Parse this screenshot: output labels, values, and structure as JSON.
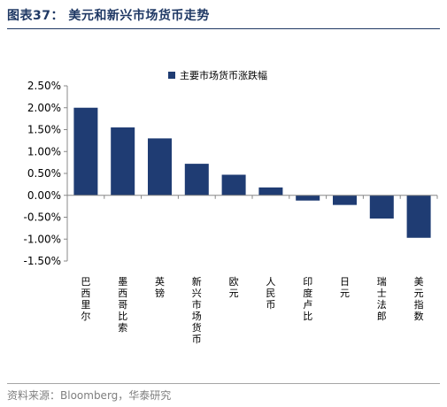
{
  "header": {
    "title": "图表37：  美元和新兴市场货币走势"
  },
  "footer": {
    "source": "资料来源：Bloomberg，华泰研究"
  },
  "chart_data": {
    "type": "bar",
    "title": "",
    "xlabel": "",
    "ylabel": "",
    "categories": [
      "巴西里尔",
      "墨西哥比索",
      "英镑",
      "新兴市场货币",
      "欧元",
      "人民币",
      "印度卢比",
      "日元",
      "瑞士法郎",
      "美元指数"
    ],
    "series": [
      {
        "name": "主要市场货币涨跌幅",
        "values": [
          2.0,
          1.55,
          1.3,
          0.72,
          0.47,
          0.18,
          -0.12,
          -0.22,
          -0.53,
          -0.97
        ]
      }
    ],
    "ylim": [
      -1.5,
      2.5
    ],
    "yticks": [
      -1.5,
      -1.0,
      -0.5,
      0.0,
      0.5,
      1.0,
      1.5,
      2.0,
      2.5
    ],
    "ytick_labels": [
      "-1.50%",
      "-1.00%",
      "-0.50%",
      "0.00%",
      "0.50%",
      "1.00%",
      "1.50%",
      "2.00%",
      "2.50%"
    ],
    "grid": false,
    "legend_position": "top-center",
    "bar_color": "#1f3c73",
    "axis_color": "#888888"
  }
}
